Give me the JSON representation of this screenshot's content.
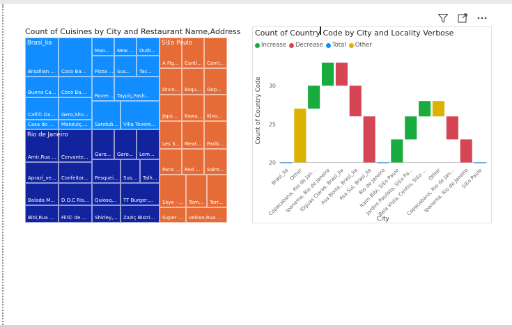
{
  "chart_data": [
    {
      "type": "treemap",
      "title": "Count of Cuisines by City and Restaurant Name,Address",
      "groups": [
        {
          "name": "Brasí_lia",
          "color": "#118DFF",
          "items": [
            {
              "label": "Mao...",
              "value": 2
            },
            {
              "label": "New ...",
              "value": 2
            },
            {
              "label": "Outb...",
              "value": 2
            },
            {
              "label": "Pizza I...",
              "value": 2
            },
            {
              "label": "Sus...",
              "value": 2
            },
            {
              "label": "Tac...",
              "value": 2
            },
            {
              "label": "Roveret...",
              "value": 2
            },
            {
              "label": "Taypiç,Fash...",
              "value": 2
            },
            {
              "label": "Sandub...",
              "value": 2
            },
            {
              "label": "Villa Tevere...",
              "value": 2
            },
            {
              "label": "Brazilian ...",
              "value": 3
            },
            {
              "label": "Coco Ba...",
              "value": 3
            },
            {
              "label": "Buena Ca...",
              "value": 3
            },
            {
              "label": "Coco Ba...",
              "value": 3
            },
            {
              "label": "Cafí© Da...",
              "value": 3
            },
            {
              "label": "Gero,Sho...",
              "value": 3
            },
            {
              "label": "Casa do ...",
              "value": 2
            },
            {
              "label": "Manzuiç,...",
              "value": 2
            }
          ]
        },
        {
          "name": "Rio de Janeiro",
          "color": "#12239E",
          "items": [
            {
              "label": "Garo...",
              "value": 2
            },
            {
              "label": "Garo...",
              "value": 2
            },
            {
              "label": "Lem...",
              "value": 2
            },
            {
              "label": "Pesquei...",
              "value": 2
            },
            {
              "label": "Sus...",
              "value": 2
            },
            {
              "label": "Talh...",
              "value": 2
            },
            {
              "label": "Quiosq...",
              "value": 2
            },
            {
              "label": "TT Burger,...",
              "value": 2
            },
            {
              "label": "Shirley,...",
              "value": 2
            },
            {
              "label": "Zaziç Bistri...",
              "value": 2
            },
            {
              "label": "Amir,Rua ...",
              "value": 3
            },
            {
              "label": "Cervante...",
              "value": 3
            },
            {
              "label": "Aprazí_ve...",
              "value": 3
            },
            {
              "label": "Confeitar...",
              "value": 3
            },
            {
              "label": "Balada M...",
              "value": 3
            },
            {
              "label": "D.O.C Ris...",
              "value": 3
            },
            {
              "label": "Bibi,Rua ...",
              "value": 2
            },
            {
              "label": "Fill© de ...",
              "value": 2
            }
          ]
        },
        {
          "name": "Sí£o Paulo",
          "color": "#E66C37",
          "items": [
            {
              "label": "A Fig...",
              "value": 2
            },
            {
              "label": "Canti...",
              "value": 2
            },
            {
              "label": "Canti...",
              "value": 2
            },
            {
              "label": "Divin...",
              "value": 2
            },
            {
              "label": "Esqu...",
              "value": 2
            },
            {
              "label": "Gop...",
              "value": 2
            },
            {
              "label": "Jiqui...",
              "value": 2
            },
            {
              "label": "Kawa...",
              "value": 2
            },
            {
              "label": "Kino...",
              "value": 2
            },
            {
              "label": "Les 3...",
              "value": 2
            },
            {
              "label": "Meat...",
              "value": 2
            },
            {
              "label": "Parib...",
              "value": 2
            },
            {
              "label": "Paris ...",
              "value": 2
            },
            {
              "label": "Red ...",
              "value": 2
            },
            {
              "label": "Saint...",
              "value": 2
            },
            {
              "label": "Skye - ...",
              "value": 2
            },
            {
              "label": "Tem...",
              "value": 2
            },
            {
              "label": "Terr...",
              "value": 2
            },
            {
              "label": "Super ...",
              "value": 2
            },
            {
              "label": "Veloso,Rua ...",
              "value": 2
            }
          ]
        }
      ]
    },
    {
      "type": "waterfall",
      "title": "Count of Country Code by City and Locality Verbose",
      "xlabel": "City",
      "ylabel": "Count of Country Code",
      "ylim": [
        19.5,
        34
      ],
      "yticks": [
        20,
        25,
        30
      ],
      "legend": [
        {
          "label": "Increase",
          "color": "#1AAB40"
        },
        {
          "label": "Decrease",
          "color": "#D64554"
        },
        {
          "label": "Total",
          "color": "#118DFF"
        },
        {
          "label": "Other",
          "color": "#D9B300"
        }
      ],
      "bars": [
        {
          "category": "Brasí_lia",
          "kind": "total",
          "start": 20,
          "end": 20
        },
        {
          "category": "Other",
          "kind": "other",
          "start": 20,
          "end": 27
        },
        {
          "category": "Copacabana, Rio de Jan...",
          "kind": "increase",
          "start": 27,
          "end": 30
        },
        {
          "category": "Ipanema, Rio de Janeiro",
          "kind": "increase",
          "start": 30,
          "end": 33
        },
        {
          "category": "ÍDguas Claras, Brasí_lia",
          "kind": "decrease",
          "start": 33,
          "end": 30
        },
        {
          "category": "Asa Norte, Brasí_lia",
          "kind": "decrease",
          "start": 30,
          "end": 26
        },
        {
          "category": "Asa Sul, Brasí_lia",
          "kind": "decrease",
          "start": 26,
          "end": 20
        },
        {
          "category": "Rio de Janeiro",
          "kind": "total",
          "start": 20,
          "end": 20
        },
        {
          "category": "Itaim Bibi, Sí£o Paulo",
          "kind": "increase",
          "start": 20,
          "end": 23
        },
        {
          "category": "Jardim Paulista, Sí£o Pa...",
          "kind": "increase",
          "start": 23,
          "end": 26
        },
        {
          "category": "Bela Vista, Centro, Sí£o ...",
          "kind": "increase",
          "start": 26,
          "end": 28
        },
        {
          "category": "Other",
          "kind": "other",
          "start": 28,
          "end": 26
        },
        {
          "category": "Copacabana, Rio de Jan...",
          "kind": "decrease",
          "start": 26,
          "end": 23
        },
        {
          "category": "Ipanema, Rio de Janeiro",
          "kind": "decrease",
          "start": 23,
          "end": 20
        },
        {
          "category": "Sí£o Paulo",
          "kind": "total",
          "start": 20,
          "end": 20
        }
      ]
    }
  ]
}
